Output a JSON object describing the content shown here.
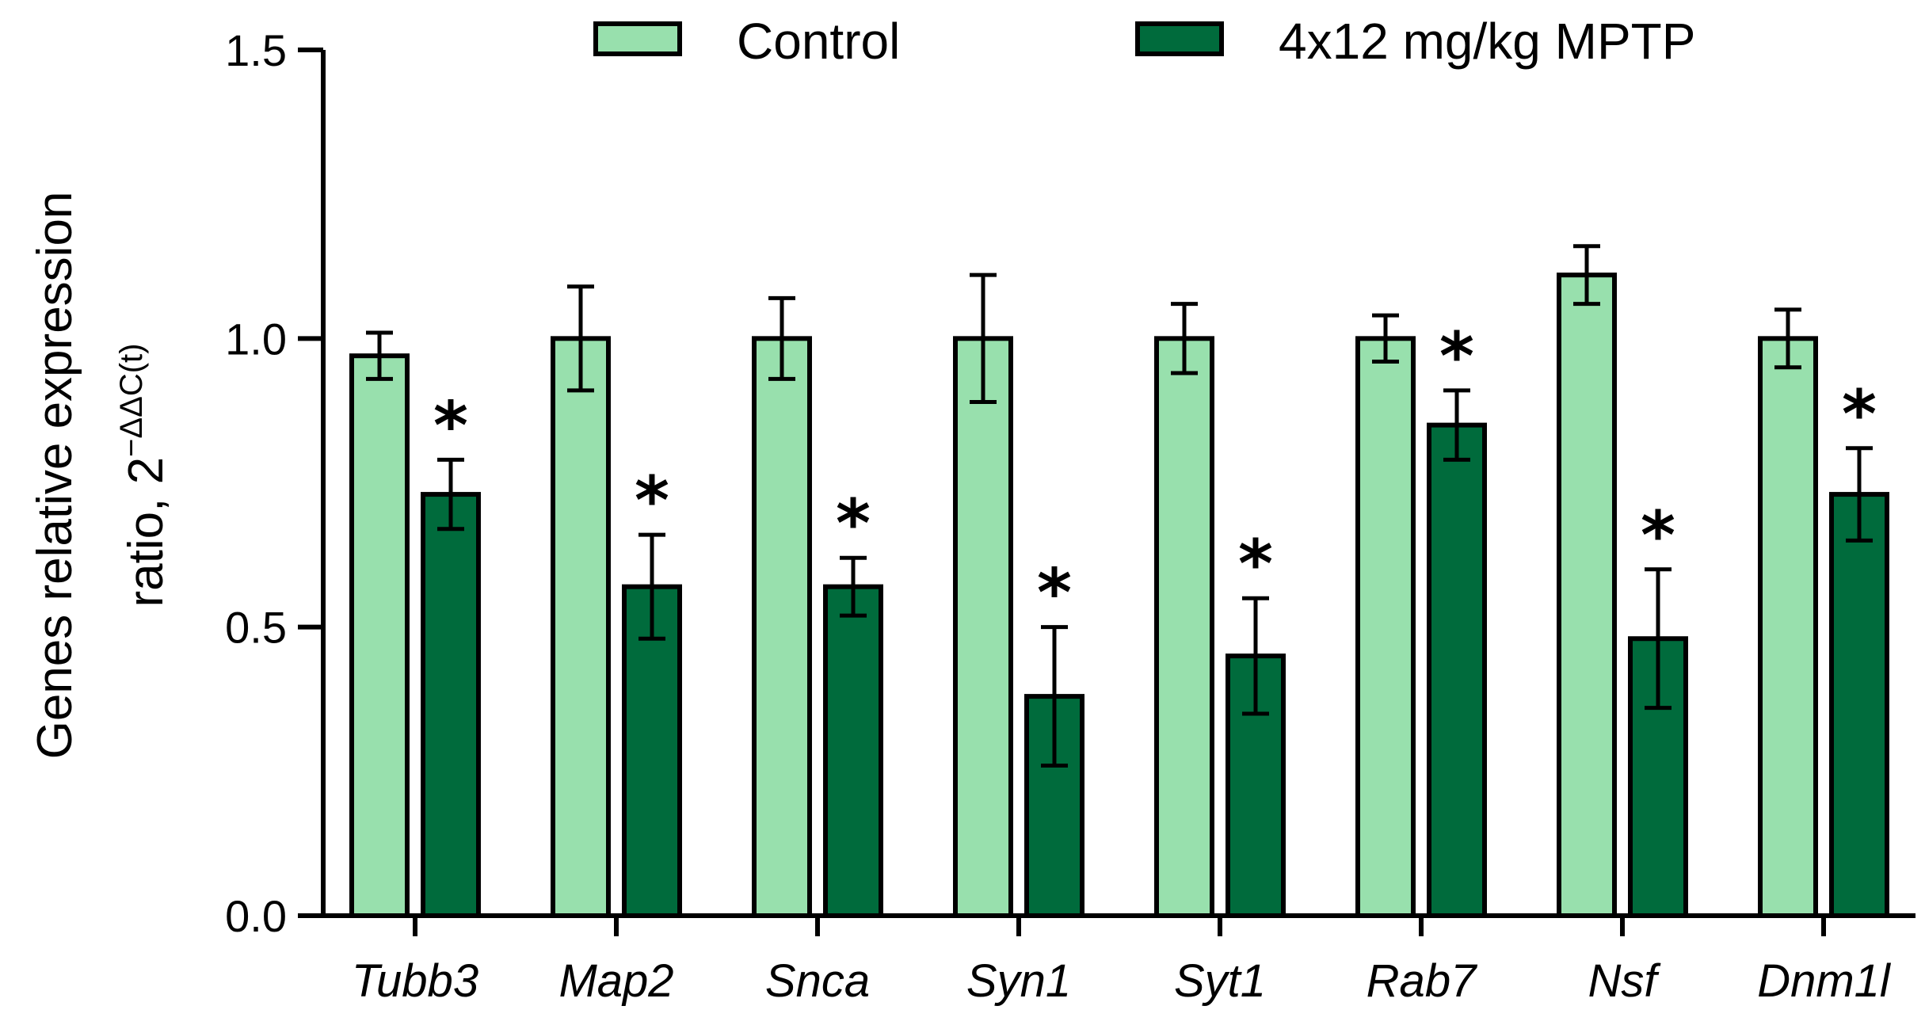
{
  "chart_data": {
    "type": "bar",
    "title": "",
    "xlabel": "",
    "ylabel_line1": "Genes relative expression",
    "ylabel_line2_prefix": "ratio, 2",
    "ylabel_superscript": "−ΔΔC(t)",
    "ylim": [
      0,
      1.5
    ],
    "yticks": [
      "0.0",
      "0.5",
      "1.0",
      "1.5"
    ],
    "ytick_values": [
      0,
      0.5,
      1.0,
      1.5
    ],
    "legend_position": "top",
    "categories": [
      "Tubb3",
      "Map2",
      "Snca",
      "Syn1",
      "Syt1",
      "Rab7",
      "Nsf",
      "Dnm1l"
    ],
    "series": [
      {
        "name": "Control",
        "color": "#98e0ad",
        "values": [
          0.97,
          1.0,
          1.0,
          1.0,
          1.0,
          1.0,
          1.11,
          1.0
        ],
        "errors": [
          0.04,
          0.09,
          0.07,
          0.11,
          0.06,
          0.04,
          0.05,
          0.05
        ]
      },
      {
        "name": "4x12 mg/kg MPTP",
        "color": "#006b3c",
        "values": [
          0.73,
          0.57,
          0.57,
          0.38,
          0.45,
          0.85,
          0.48,
          0.73
        ],
        "errors": [
          0.06,
          0.09,
          0.05,
          0.12,
          0.1,
          0.06,
          0.12,
          0.08
        ]
      }
    ],
    "significance_marker": "*",
    "significant": [
      true,
      true,
      true,
      true,
      true,
      true,
      true,
      true
    ]
  }
}
